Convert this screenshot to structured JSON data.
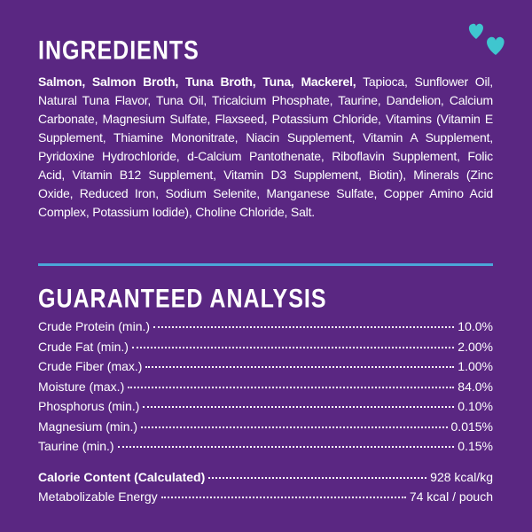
{
  "ingredients": {
    "title": "INGREDIENTS",
    "bold_text": "Salmon, Salmon Broth, Tuna Broth, Tuna, Mackerel,",
    "text": "Tapioca, Sunflower Oil, Natural Tuna Flavor, Tuna Oil, Tricalcium Phosphate, Taurine, Dandelion, Calcium Carbonate, Magnesium Sulfate, Flaxseed, Potassium Chloride, Vitamins (Vitamin E Supplement, Thiamine Mononitrate, Niacin Supplement, Vitamin A Supplement, Pyridoxine Hydrochloride, d-Calcium Pantothenate, Riboflavin Supplement, Folic Acid, Vitamin B12 Supplement, Vitamin D3 Supplement, Biotin), Minerals (Zinc Oxide, Reduced Iron, Sodium Selenite, Manganese Sulfate, Copper Amino Acid Complex, Potassium Iodide), Choline Chloride, Salt."
  },
  "analysis": {
    "title": "GUARANTEED ANALYSIS",
    "rows": [
      {
        "label": "Crude Protein (min.)",
        "value": "10.0%"
      },
      {
        "label": "Crude Fat (min.)",
        "value": "2.00%"
      },
      {
        "label": "Crude Fiber (max.)",
        "value": "1.00%"
      },
      {
        "label": "Moisture (max.)",
        "value": "84.0%"
      },
      {
        "label": "Phosphorus (min.)",
        "value": "0.10%"
      },
      {
        "label": "Magnesium (min.)",
        "value": "0.015%"
      },
      {
        "label": "Taurine (min.)",
        "value": "0.15%"
      }
    ]
  },
  "calorie": [
    {
      "label": "Calorie Content (Calculated)",
      "value": "928 kcal/kg"
    },
    {
      "label": "Metabolizable Energy",
      "value": "74 kcal / pouch"
    }
  ]
}
